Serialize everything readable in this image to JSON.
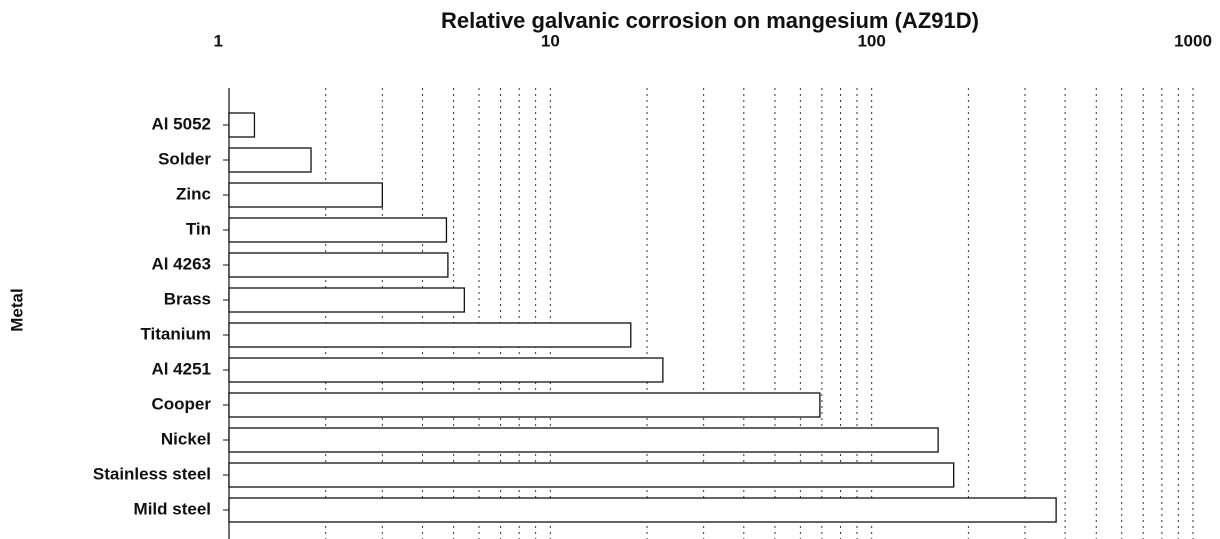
{
  "chart_data": {
    "type": "bar",
    "orientation": "horizontal",
    "title": "Relative galvanic corrosion on mangesium (AZ91D)",
    "y_label": "Metal",
    "categories": [
      "Al 5052",
      "Solder",
      "Zinc",
      "Tin",
      "Al 4263",
      "Brass",
      "Titanium",
      "Al 4251",
      "Cooper",
      "Nickel",
      "Stainless steel",
      "Mild steel"
    ],
    "values": [
      1.2,
      1.8,
      3.0,
      4.75,
      4.8,
      5.4,
      17.8,
      22.4,
      69,
      161,
      180,
      375
    ],
    "color": "#ffffff",
    "xscale": "log",
    "xlim": [
      1,
      1000
    ],
    "xticks": [
      1,
      10,
      100,
      1000
    ],
    "minor_xticks": [
      2,
      3,
      4,
      5,
      6,
      7,
      8,
      9,
      20,
      30,
      40,
      50,
      60,
      70,
      80,
      90,
      200,
      300,
      400,
      500,
      600,
      700,
      800,
      900
    ],
    "grid": true
  }
}
